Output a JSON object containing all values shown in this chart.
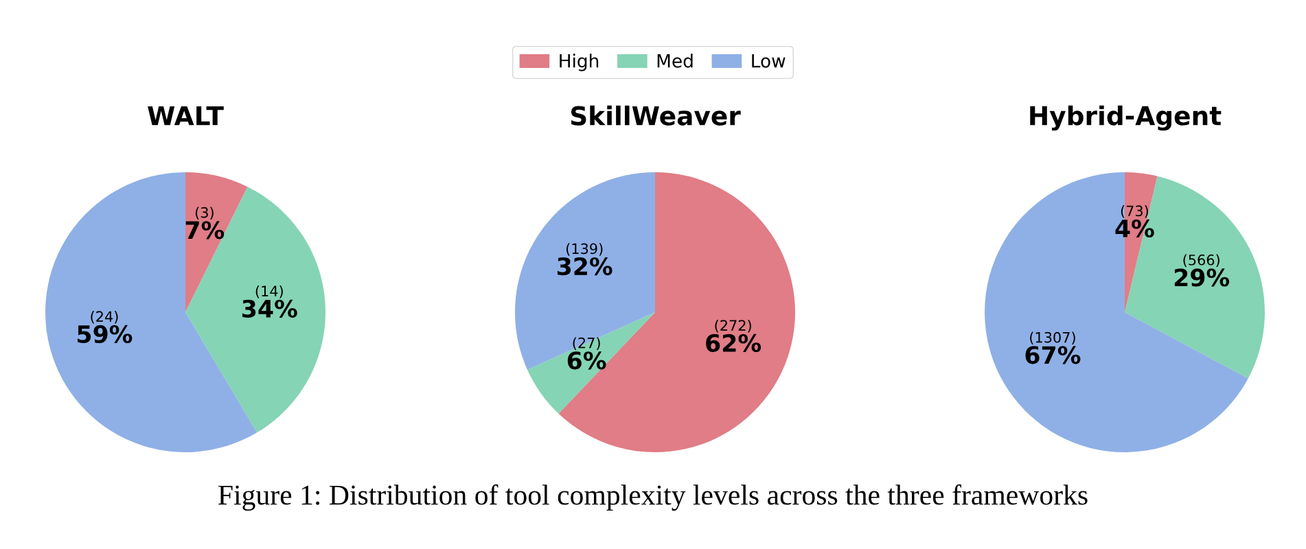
{
  "chart_data": [
    {
      "type": "pie",
      "title": "WALT",
      "categories": [
        "High",
        "Med",
        "Low"
      ],
      "values": [
        3,
        14,
        24
      ],
      "colors": [
        "#e07d86",
        "#85d4b5",
        "#8fb0e6"
      ],
      "value_labels": [
        "(3)\n7%",
        "(14)\n34%",
        "(24)\n59%"
      ],
      "legend": "top"
    },
    {
      "type": "pie",
      "title": "SkillWeaver",
      "categories": [
        null,
        null,
        null
      ],
      "values": [
        272,
        27,
        139
      ],
      "colors": [
        "#e07d86",
        "#85d4b5",
        "#8fb0e6"
      ],
      "value_labels": [
        "(272)\n62%",
        "(27)\n6%",
        "(139)\n32%"
      ],
      "annotations": [
        "Figure 1: Distribution of tool complexity levels across the three frameworks"
      ]
    },
    {
      "type": "pie",
      "title": "Hybrid-Agent",
      "categories": [
        null,
        null,
        null
      ],
      "values": [
        73,
        566,
        1307
      ],
      "colors": [
        "#e07d86",
        "#85d4b5",
        "#8fb0e6"
      ],
      "value_labels": [
        "(73)\n4%",
        "(566)\n29%",
        "(1307)\n67%"
      ]
    }
  ]
}
